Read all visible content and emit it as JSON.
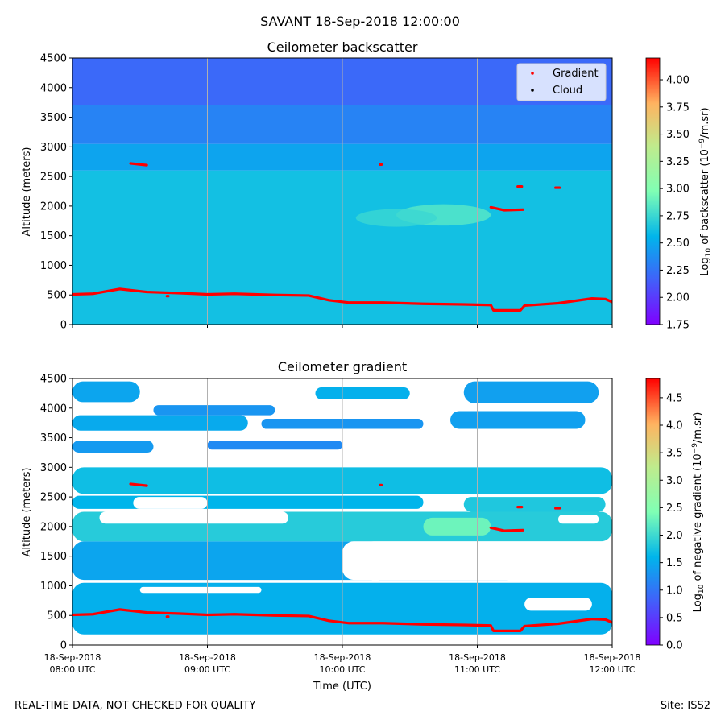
{
  "figure_title": "SAVANT 18-Sep-2018 12:00:00",
  "footer": {
    "note": "REAL-TIME DATA, NOT CHECKED FOR QUALITY",
    "site": "Site: ISS2"
  },
  "colors": {
    "gradient_marker": "#ff0000",
    "cloud_marker": "#000000",
    "grid": "#b0b0b0"
  },
  "chart_data": [
    {
      "type": "heatmap",
      "title": "Ceilometer backscatter",
      "xlabel": "",
      "ylabel": "Altitude (meters)",
      "xlim": [
        8.0,
        12.0
      ],
      "ylim": [
        0,
        4500
      ],
      "yticks": [
        0,
        500,
        1000,
        1500,
        2000,
        2500,
        3000,
        3500,
        4000,
        4500
      ],
      "colorbar": {
        "label_prefix": "Log",
        "label_sub": "10",
        "label_mid": " of backscatter (10",
        "label_sup": "−9",
        "label_suffix": "/m.sr)",
        "range": [
          1.75,
          4.2
        ],
        "ticks": [
          "1.75",
          "2.00",
          "2.25",
          "2.50",
          "2.75",
          "3.00",
          "3.25",
          "3.50",
          "3.75",
          "4.00"
        ]
      },
      "legend": {
        "position": "top-right",
        "entries": [
          "Gradient",
          "Cloud"
        ]
      },
      "layers": [
        {
          "y0": 0,
          "y1": 2600,
          "value": 2.62
        },
        {
          "y0": 2600,
          "y1": 3050,
          "value": 2.48
        },
        {
          "y0": 3050,
          "y1": 3700,
          "value": 2.32
        },
        {
          "y0": 3700,
          "y1": 4500,
          "value": 2.2
        }
      ],
      "bright_patches": [
        {
          "x": 10.75,
          "y": 1850,
          "dx": 0.35,
          "dy": 180,
          "value": 2.85
        },
        {
          "x": 10.4,
          "y": 1800,
          "dx": 0.3,
          "dy": 150,
          "value": 2.75
        }
      ],
      "gradient_layer": {
        "x": [
          8.0,
          8.15,
          8.35,
          8.55,
          8.8,
          9.0,
          9.2,
          9.5,
          9.75,
          9.9,
          10.05,
          10.3,
          10.6,
          10.9,
          11.1,
          11.12,
          11.32,
          11.35,
          11.6,
          11.85,
          11.95,
          12.0
        ],
        "y": [
          510,
          520,
          600,
          550,
          530,
          510,
          520,
          500,
          490,
          410,
          370,
          370,
          350,
          340,
          330,
          240,
          240,
          320,
          360,
          440,
          430,
          380
        ]
      },
      "gradient_segments": [
        {
          "x": [
            8.43,
            8.55
          ],
          "y": [
            2720,
            2690
          ]
        },
        {
          "x": [
            10.28,
            10.29
          ],
          "y": [
            2700,
            2700
          ]
        },
        {
          "x": [
            11.1,
            11.2,
            11.34
          ],
          "y": [
            1980,
            1930,
            1940
          ]
        },
        {
          "x": [
            11.3,
            11.33
          ],
          "y": [
            2330,
            2330
          ]
        },
        {
          "x": [
            11.58,
            11.61
          ],
          "y": [
            2310,
            2310
          ]
        },
        {
          "x": [
            8.7,
            8.71
          ],
          "y": [
            480,
            480
          ]
        }
      ],
      "cloud_points": []
    },
    {
      "type": "heatmap",
      "title": "Ceilometer gradient",
      "xlabel": "Time (UTC)",
      "ylabel": "Altitude (meters)",
      "xlim": [
        8.0,
        12.0
      ],
      "ylim": [
        0,
        4500
      ],
      "yticks": [
        0,
        500,
        1000,
        1500,
        2000,
        2500,
        3000,
        3500,
        4000,
        4500
      ],
      "xticks": [
        {
          "value": 8.0,
          "line1": "18-Sep-2018",
          "line2": "08:00 UTC"
        },
        {
          "value": 9.0,
          "line1": "18-Sep-2018",
          "line2": "09:00 UTC"
        },
        {
          "value": 10.0,
          "line1": "18-Sep-2018",
          "line2": "10:00 UTC"
        },
        {
          "value": 11.0,
          "line1": "18-Sep-2018",
          "line2": "11:00 UTC"
        },
        {
          "value": 12.0,
          "line1": "18-Sep-2018",
          "line2": "12:00 UTC"
        }
      ],
      "colorbar": {
        "label_prefix": "Log",
        "label_sub": "10",
        "label_mid": " of negative gradient (10",
        "label_sup": "−9",
        "label_suffix": "/m.sr)",
        "range": [
          0.0,
          4.85
        ],
        "ticks": [
          "0.0",
          "0.5",
          "1.0",
          "1.5",
          "2.0",
          "2.5",
          "3.0",
          "3.5",
          "4.0",
          "4.5"
        ]
      },
      "bands": [
        {
          "x0": 8.0,
          "x1": 12.0,
          "y0": 180,
          "y1": 1050,
          "value": 1.55
        },
        {
          "x0": 8.0,
          "x1": 10.3,
          "y0": 1100,
          "y1": 1750,
          "value": 1.45
        },
        {
          "x0": 10.2,
          "x1": 11.3,
          "y0": 1100,
          "y1": 1450,
          "value": 1.35
        },
        {
          "x0": 8.0,
          "x1": 12.0,
          "y0": 1750,
          "y1": 2250,
          "value": 1.85
        },
        {
          "x0": 10.6,
          "x1": 11.1,
          "y0": 1850,
          "y1": 2150,
          "value": 2.3
        },
        {
          "x0": 8.0,
          "x1": 10.6,
          "y0": 2300,
          "y1": 2520,
          "value": 1.6
        },
        {
          "x0": 10.9,
          "x1": 11.95,
          "y0": 2250,
          "y1": 2500,
          "value": 1.8
        },
        {
          "x0": 8.0,
          "x1": 12.0,
          "y0": 2550,
          "y1": 3000,
          "value": 1.7
        },
        {
          "x0": 8.0,
          "x1": 8.6,
          "y0": 3250,
          "y1": 3450,
          "value": 1.35
        },
        {
          "x0": 8.0,
          "x1": 9.3,
          "y0": 3620,
          "y1": 3880,
          "value": 1.5
        },
        {
          "x0": 9.4,
          "x1": 10.6,
          "y0": 3650,
          "y1": 3820,
          "value": 1.3
        },
        {
          "x0": 10.8,
          "x1": 11.8,
          "y0": 3650,
          "y1": 3950,
          "value": 1.4
        },
        {
          "x0": 8.0,
          "x1": 8.5,
          "y0": 4100,
          "y1": 4450,
          "value": 1.45
        },
        {
          "x0": 8.6,
          "x1": 9.5,
          "y0": 3880,
          "y1": 4050,
          "value": 1.3
        },
        {
          "x0": 9.8,
          "x1": 10.5,
          "y0": 4150,
          "y1": 4350,
          "value": 1.55
        },
        {
          "x0": 10.9,
          "x1": 11.9,
          "y0": 4080,
          "y1": 4450,
          "value": 1.4
        },
        {
          "x0": 9.0,
          "x1": 10.0,
          "y0": 3300,
          "y1": 3450,
          "value": 1.2
        }
      ],
      "holes": [
        {
          "x0": 8.2,
          "x1": 9.6,
          "y0": 2050,
          "y1": 2250
        },
        {
          "x0": 10.0,
          "x1": 12.0,
          "y0": 1100,
          "y1": 1750
        },
        {
          "x0": 11.35,
          "x1": 11.85,
          "y0": 580,
          "y1": 800
        },
        {
          "x0": 8.5,
          "x1": 9.4,
          "y0": 880,
          "y1": 980
        },
        {
          "x0": 11.6,
          "x1": 11.9,
          "y0": 2050,
          "y1": 2200
        },
        {
          "x0": 8.45,
          "x1": 9.0,
          "y0": 2300,
          "y1": 2500
        }
      ],
      "gradient_layer": {
        "x": [
          8.0,
          8.15,
          8.35,
          8.55,
          8.8,
          9.0,
          9.2,
          9.5,
          9.75,
          9.9,
          10.05,
          10.3,
          10.6,
          10.9,
          11.1,
          11.12,
          11.32,
          11.35,
          11.6,
          11.85,
          11.95,
          12.0
        ],
        "y": [
          510,
          520,
          600,
          550,
          530,
          510,
          520,
          500,
          490,
          410,
          370,
          370,
          350,
          340,
          330,
          240,
          240,
          320,
          360,
          440,
          430,
          380
        ]
      },
      "gradient_segments": [
        {
          "x": [
            8.43,
            8.55
          ],
          "y": [
            2720,
            2690
          ]
        },
        {
          "x": [
            10.28,
            10.29
          ],
          "y": [
            2700,
            2700
          ]
        },
        {
          "x": [
            11.1,
            11.2,
            11.34
          ],
          "y": [
            1980,
            1930,
            1940
          ]
        },
        {
          "x": [
            11.3,
            11.33
          ],
          "y": [
            2330,
            2330
          ]
        },
        {
          "x": [
            11.58,
            11.61
          ],
          "y": [
            2310,
            2310
          ]
        },
        {
          "x": [
            8.7,
            8.71
          ],
          "y": [
            480,
            480
          ]
        }
      ]
    }
  ]
}
